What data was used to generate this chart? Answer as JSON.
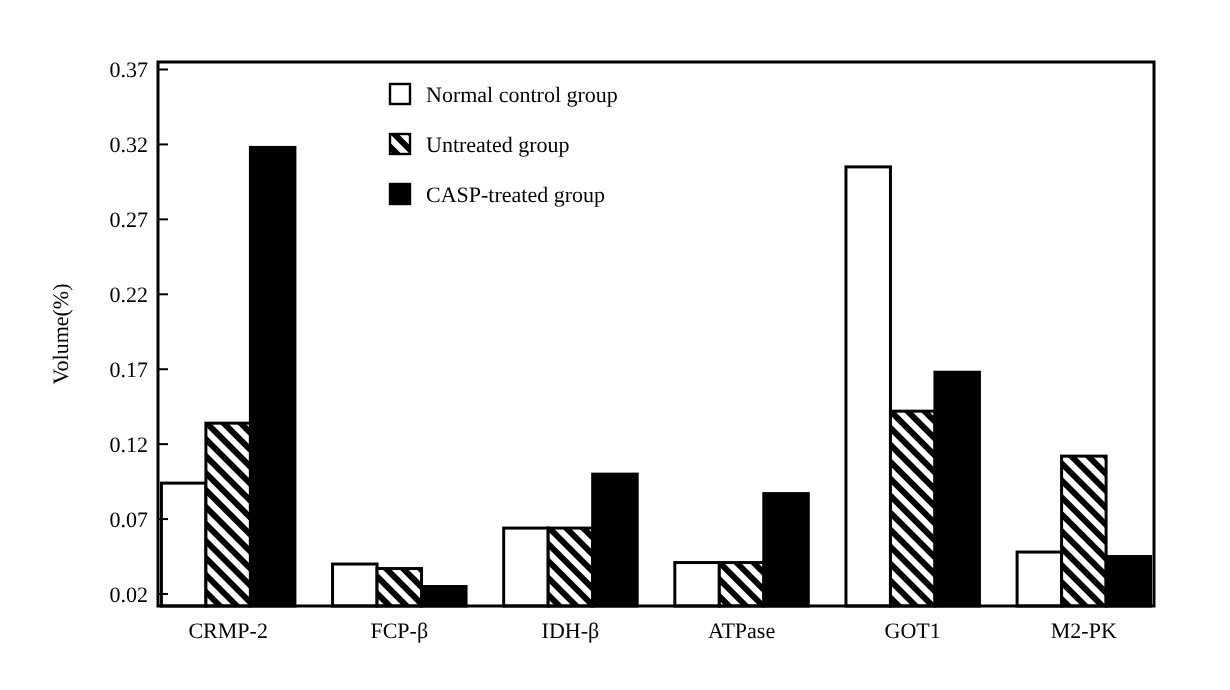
{
  "chart_data": {
    "type": "bar",
    "ylabel": "Volume(%)",
    "categories": [
      "CRMP-2",
      "FCP-β",
      "IDH-β",
      "ATPase",
      "GOT1",
      "M2-PK"
    ],
    "series": [
      {
        "name": "Normal control group",
        "color": "#ffffff",
        "values": [
          0.094,
          0.04,
          0.064,
          0.041,
          0.305,
          0.048
        ]
      },
      {
        "name": "Untreated group",
        "color": "#000000",
        "values": [
          0.134,
          0.037,
          0.064,
          0.041,
          0.142,
          0.112
        ]
      },
      {
        "name": "CASP-treated group",
        "color": "#000000",
        "values": [
          0.318,
          0.025,
          0.1,
          0.087,
          0.168,
          0.045
        ]
      }
    ],
    "ylim": [
      0.012,
      0.375
    ],
    "yticks": [
      0.02,
      0.07,
      0.12,
      0.17,
      0.22,
      0.27,
      0.32,
      0.37
    ],
    "grid": false,
    "legend": "top"
  }
}
